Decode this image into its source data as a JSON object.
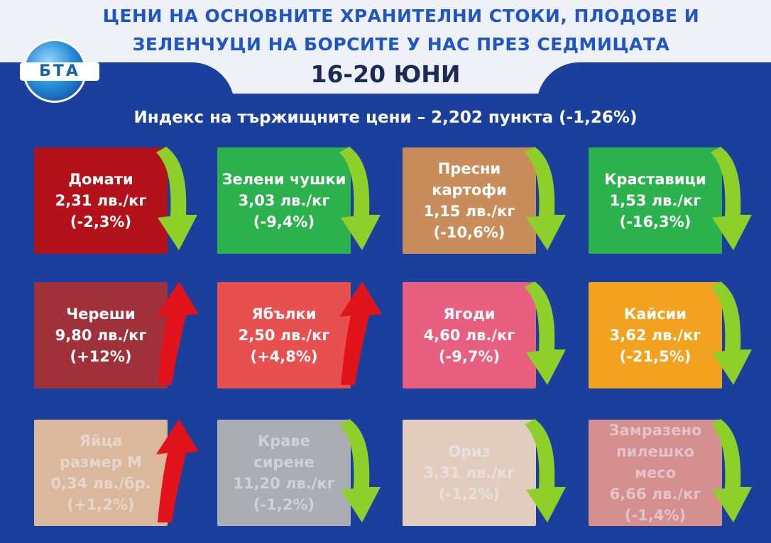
{
  "header": {
    "title_line1": "ЦЕНИ НА ОСНОВНИТЕ ХРАНИТЕЛНИ СТОКИ, ПЛОДОВЕ И",
    "title_line2": "ЗЕЛЕНЧУЦИ НА БОРСИТЕ У НАС ПРЕЗ СЕДМИЦАТА",
    "date": "16-20 ЮНИ",
    "logo_text": "БТА"
  },
  "index": {
    "text": "Индекс на тържищните цени – 2,202 пункта (-1,26%)"
  },
  "colors": {
    "background": "#1a3f9c",
    "arrow_down": "#8fcf2a",
    "arrow_up": "#e0121a"
  },
  "items": [
    {
      "name": "Домати",
      "name2": "",
      "price": "2,31 лв./кг",
      "change": "(-2,3%)",
      "direction": "down",
      "color": "#b3121a"
    },
    {
      "name": "Зелени чушки",
      "name2": "",
      "price": "3,03 лв./кг",
      "change": "(-9,4%)",
      "direction": "down",
      "color": "#2bb24c"
    },
    {
      "name": "Пресни",
      "name2": "картофи",
      "price": "1,15 лв./кг",
      "change": "(-10,6%)",
      "direction": "down",
      "color": "#c98d5b"
    },
    {
      "name": "Краставици",
      "name2": "",
      "price": "1,53 лв./кг",
      "change": "(-16,3%)",
      "direction": "down",
      "color": "#2bb24c"
    },
    {
      "name": "Череши",
      "name2": "",
      "price": "9,80 лв./кг",
      "change": "(+12%)",
      "direction": "up",
      "color": "#a0313a"
    },
    {
      "name": "Ябълки",
      "name2": "",
      "price": "2,50 лв./кг",
      "change": "(+4,8%)",
      "direction": "up",
      "color": "#e85050"
    },
    {
      "name": "Ягоди",
      "name2": "",
      "price": "4,60 лв./кг",
      "change": "(-9,7%)",
      "direction": "down",
      "color": "#e85f7f"
    },
    {
      "name": "Кайсии",
      "name2": "",
      "price": "3,62 лв./кг",
      "change": "(-21,5%)",
      "direction": "down",
      "color": "#f2a21f"
    },
    {
      "name": "Яйца",
      "name2": "размер М",
      "price": "0,34 лв./бр.",
      "change": "(+1,2%)",
      "direction": "up",
      "color": "#ecc39c"
    },
    {
      "name": "Краве",
      "name2": "сирене",
      "price": "11,20 лв./кг",
      "change": "(-1,2%)",
      "direction": "down",
      "color": "#b7b7b7"
    },
    {
      "name": "Ориз",
      "name2": "",
      "price": "3,31 лв./кг",
      "change": "(-1,2%)",
      "direction": "down",
      "color": "#f3d9c0"
    },
    {
      "name": "Замразено",
      "name2": "пилешко",
      "name3": "месо",
      "price": "6,66 лв./кг",
      "change": "(-1,4%)",
      "direction": "down",
      "color": "#e6968e"
    }
  ]
}
